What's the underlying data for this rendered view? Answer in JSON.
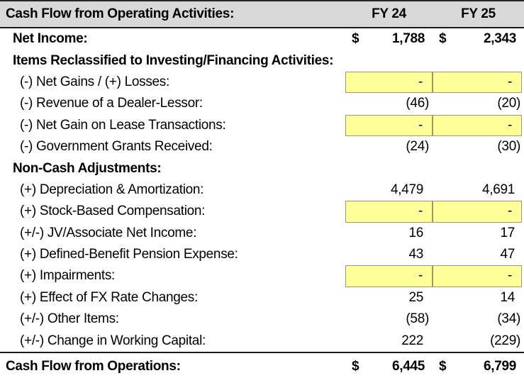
{
  "sheet_title": "Cash Flow from Operating Activities:",
  "columns": {
    "fy24": "FY 24",
    "fy25": "FY 25"
  },
  "currency_symbol": "$",
  "colors": {
    "header_bg": "#D9D9D9",
    "border_dark": "#1a1a1a",
    "highlight_bg": "#FFFF99",
    "highlight_border": "#99996B",
    "input_dash_blue": "#000080",
    "text": "#000000"
  },
  "rows": [
    {
      "label": "Net Income:",
      "indent": 1,
      "bold": true,
      "currency": true,
      "fy24": "1,788",
      "fy25": "2,343"
    },
    {
      "label": "Items Reclassified to Investing/Financing Activities:",
      "indent": 1,
      "bold": true,
      "fy24": "",
      "fy25": ""
    },
    {
      "label": "(-) Net Gains / (+) Losses:",
      "indent": 2,
      "highlight": true,
      "fy24": "-",
      "fy25": "-",
      "fy24_blue": true
    },
    {
      "label": "(-) Revenue of a Dealer-Lessor:",
      "indent": 2,
      "fy24": "(46)",
      "fy25": "(20)"
    },
    {
      "label": "(-) Net Gain on Lease Transactions:",
      "indent": 2,
      "highlight": true,
      "fy24": "-",
      "fy25": "-",
      "fy24_blue": true
    },
    {
      "label": "(-) Government Grants Received:",
      "indent": 2,
      "fy24": "(24)",
      "fy25": "(30)"
    },
    {
      "label": "Non-Cash Adjustments:",
      "indent": 1,
      "bold": true,
      "fy24": "",
      "fy25": ""
    },
    {
      "label": "(+) Depreciation & Amortization:",
      "indent": 2,
      "fy24": "4,479",
      "fy25": "4,691"
    },
    {
      "label": "(+) Stock-Based Compensation:",
      "indent": 2,
      "highlight": true,
      "fy24": "-",
      "fy25": "-",
      "fy24_blue": true
    },
    {
      "label": "(+/-) JV/Associate Net Income:",
      "indent": 2,
      "fy24": "16",
      "fy25": "17"
    },
    {
      "label": "(+) Defined-Benefit Pension Expense:",
      "indent": 2,
      "fy24": "43",
      "fy25": "47"
    },
    {
      "label": "(+) Impairments:",
      "indent": 2,
      "highlight": true,
      "fy24": "-",
      "fy25": "-",
      "fy24_blue": true
    },
    {
      "label": "(+) Effect of FX Rate Changes:",
      "indent": 2,
      "fy24": "25",
      "fy25": "14"
    },
    {
      "label": "(+/-) Other Items:",
      "indent": 2,
      "fy24": "(58)",
      "fy25": "(34)"
    },
    {
      "label": "(+/-) Change in Working Capital:",
      "indent": 2,
      "fy24": "222",
      "fy25": "(229)"
    }
  ],
  "total_row": {
    "label": "Cash Flow from Operations:",
    "fy24": "6,445",
    "fy25": "6,799"
  }
}
